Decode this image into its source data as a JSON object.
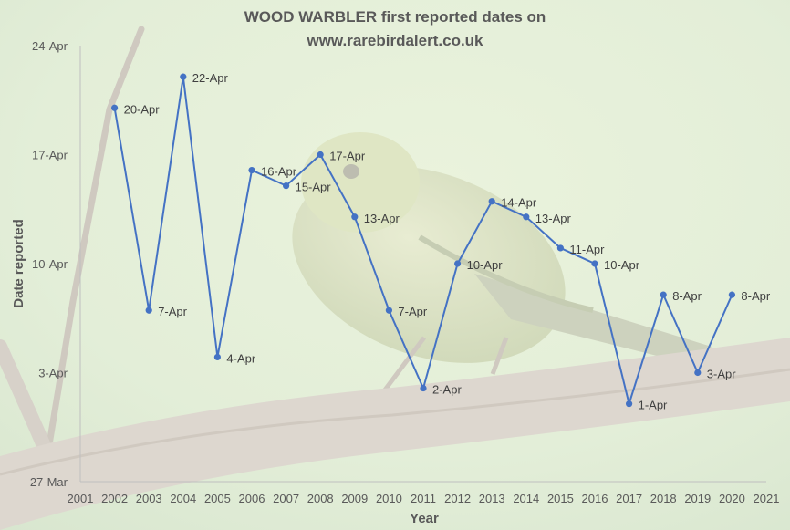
{
  "chart_data": {
    "type": "line",
    "title": [
      "WOOD WARBLER first reported dates on",
      "www.rarebirdalert.co.uk"
    ],
    "xlabel": "Year",
    "ylabel": "Date reported",
    "xlim": [
      2001,
      2021
    ],
    "x_ticks": [
      "2001",
      "2002",
      "2003",
      "2004",
      "2005",
      "2006",
      "2007",
      "2008",
      "2009",
      "2010",
      "2011",
      "2012",
      "2013",
      "2014",
      "2015",
      "2016",
      "2017",
      "2018",
      "2019",
      "2020",
      "2021"
    ],
    "ylim": [
      "27-Mar",
      "24-Apr"
    ],
    "y_ticks": [
      "27-Mar",
      "3-Apr",
      "10-Apr",
      "17-Apr",
      "24-Apr"
    ],
    "y_tick_values": [
      -4,
      3,
      10,
      17,
      24
    ],
    "grid": false,
    "legend": "none",
    "series": [
      {
        "color": "#4472c4",
        "points": [
          {
            "x": 2002,
            "y": 20,
            "label": "20-Apr"
          },
          {
            "x": 2003,
            "y": 7,
            "label": "7-Apr"
          },
          {
            "x": 2004,
            "y": 22,
            "label": "22-Apr"
          },
          {
            "x": 2005,
            "y": 4,
            "label": "4-Apr"
          },
          {
            "x": 2006,
            "y": 16,
            "label": "16-Apr"
          },
          {
            "x": 2007,
            "y": 15,
            "label": "15-Apr"
          },
          {
            "x": 2008,
            "y": 17,
            "label": "17-Apr"
          },
          {
            "x": 2009,
            "y": 13,
            "label": "13-Apr"
          },
          {
            "x": 2010,
            "y": 7,
            "label": "7-Apr"
          },
          {
            "x": 2011,
            "y": 2,
            "label": "2-Apr"
          },
          {
            "x": 2012,
            "y": 10,
            "label": "10-Apr"
          },
          {
            "x": 2013,
            "y": 14,
            "label": "14-Apr"
          },
          {
            "x": 2014,
            "y": 13,
            "label": "13-Apr"
          },
          {
            "x": 2015,
            "y": 11,
            "label": "11-Apr"
          },
          {
            "x": 2016,
            "y": 10,
            "label": "10-Apr"
          },
          {
            "x": 2017,
            "y": 1,
            "label": "1-Apr"
          },
          {
            "x": 2018,
            "y": 8,
            "label": "8-Apr"
          },
          {
            "x": 2019,
            "y": 3,
            "label": "3-Apr"
          },
          {
            "x": 2020,
            "y": 8,
            "label": "8-Apr"
          }
        ]
      }
    ]
  }
}
